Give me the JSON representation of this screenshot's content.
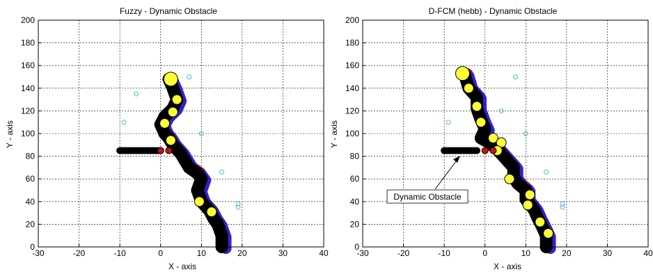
{
  "chart_data": [
    {
      "type": "scatter",
      "title": "Fuzzy - Dynamic Obstacle",
      "xlabel": "X - axis",
      "ylabel": "Y - axis",
      "xlim": [
        -30,
        40
      ],
      "ylim": [
        0,
        200
      ],
      "xticks": [
        -30,
        -20,
        -10,
        0,
        10,
        20,
        30,
        40
      ],
      "yticks": [
        0,
        20,
        40,
        60,
        80,
        100,
        120,
        140,
        160,
        180,
        200
      ],
      "grid": true,
      "series": [
        {
          "role": "path",
          "color": "#000000",
          "x": [
            15,
            15,
            14,
            13,
            12,
            10,
            9,
            10,
            9,
            7,
            6,
            5,
            3,
            2,
            1,
            0,
            1,
            3,
            4,
            3,
            2
          ],
          "y": [
            0,
            10,
            20,
            25,
            32,
            40,
            50,
            60,
            65,
            70,
            76,
            82,
            90,
            96,
            100,
            108,
            115,
            122,
            130,
            140,
            148
          ]
        },
        {
          "role": "yellow markers",
          "color": "#ffff33",
          "x": [
            2.5,
            4,
            3,
            1,
            2.5,
            9.5,
            12.5
          ],
          "y": [
            148,
            130,
            119,
            109,
            94,
            40,
            31
          ]
        },
        {
          "role": "obstacle",
          "color": "#000000",
          "x": [
            -10,
            -8,
            -6,
            -4,
            -2,
            0
          ],
          "y": [
            85,
            85,
            85,
            85,
            85,
            85
          ]
        },
        {
          "role": "obstacle red",
          "color": "#cc1111",
          "x": [
            0,
            2
          ],
          "y": [
            85,
            85
          ]
        },
        {
          "role": "cyan targets",
          "color": "#44bbcc",
          "x": [
            -6,
            -9,
            7,
            10,
            15,
            19,
            19
          ],
          "y": [
            135,
            110,
            150,
            100,
            66,
            38,
            35
          ]
        }
      ]
    },
    {
      "type": "scatter",
      "title": "D-FCM (hebb) - Dynamic Obstacle",
      "xlabel": "X - axis",
      "ylabel": "Y - axis",
      "xlim": [
        -30,
        40
      ],
      "ylim": [
        0,
        200
      ],
      "xticks": [
        -30,
        -20,
        -10,
        0,
        10,
        20,
        30,
        40
      ],
      "yticks": [
        0,
        20,
        40,
        60,
        80,
        100,
        120,
        140,
        160,
        180,
        200
      ],
      "grid": true,
      "annotation": "Dynamic Obstacle",
      "series": [
        {
          "role": "path",
          "color": "#000000",
          "x": [
            15,
            15,
            14,
            13,
            12,
            10,
            10,
            8,
            7,
            7,
            5,
            3,
            1,
            -1,
            0,
            -1,
            -2,
            -2,
            -4,
            -5
          ],
          "y": [
            0,
            10,
            18,
            25,
            33,
            42,
            50,
            56,
            62,
            70,
            78,
            86,
            92,
            96,
            104,
            112,
            122,
            132,
            140,
            152
          ]
        },
        {
          "role": "yellow markers",
          "color": "#ffff33",
          "x": [
            -5.5,
            -4,
            -2,
            -1,
            2,
            4,
            3,
            6,
            11,
            10.5,
            13.5,
            15.5
          ],
          "y": [
            153,
            140,
            124,
            110,
            96,
            92,
            85,
            60,
            46,
            37,
            22,
            12
          ]
        },
        {
          "role": "obstacle",
          "color": "#000000",
          "x": [
            -10,
            -8,
            -6,
            -4,
            -2
          ],
          "y": [
            85,
            85,
            85,
            85,
            85
          ]
        },
        {
          "role": "obstacle red",
          "color": "#cc1111",
          "x": [
            0,
            2
          ],
          "y": [
            85,
            85
          ]
        },
        {
          "role": "cyan targets",
          "color": "#44bbcc",
          "x": [
            -9,
            7.5,
            4,
            10,
            15,
            19,
            19
          ],
          "y": [
            110,
            150,
            120,
            100,
            66,
            38,
            35
          ]
        }
      ]
    }
  ]
}
